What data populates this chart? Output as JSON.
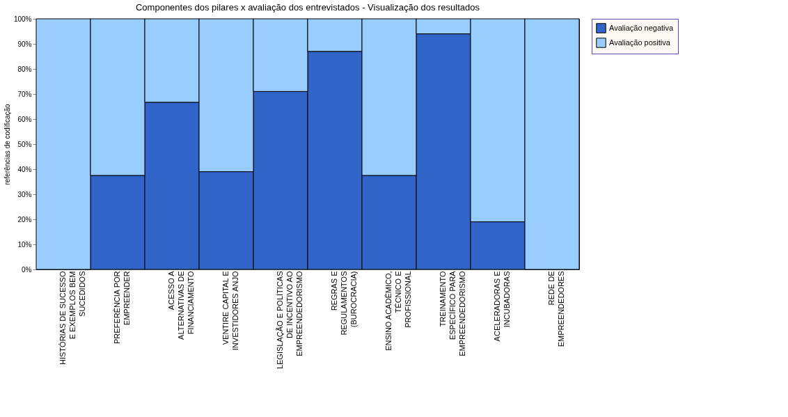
{
  "chart_data": {
    "type": "bar",
    "title": "Componentes dos pilares x avaliação dos entrevistados - Visualização dos resultados",
    "ylabel": "referências de codificação",
    "categories": [
      "HISTÓRIAS DE SUCESSO\nE EXEMPLOS BEM\nSUCEDIDOS",
      "PREFERÊNCIA POR\nEMPREENDER",
      "ACESSO A\nALTERNATIVAS DE\nFINANCIAMENTO",
      "VENTIRE CAPITAL E\nINVESTIDORES ANJO",
      "LEGISLAÇÃO E POLÍTICAS\nDE INCENTIVO AO\nEMPREENDEDORISMO",
      "REGRAS E\nREGULAMENTOS\n(BUROCRACIA)",
      "ENSINO ACADÊMICO,\nTÉCNICO E\nPROFISSIONAL",
      "TREINAMENTO\nESPECÍFICO PARA\nEMPREENDEDORISMO",
      "ACELERADORAS E\nINCUBADORAS",
      "REDE DE\nEMPREENDEDORES"
    ],
    "stacked": true,
    "series": [
      {
        "name": "Avaliação negativa",
        "color": "#3164c8",
        "values": [
          0,
          37.5,
          66.7,
          39,
          71,
          87,
          37.5,
          94,
          19,
          0
        ]
      },
      {
        "name": "Avaliação positiva",
        "color": "#99ccff",
        "values": [
          100,
          62.5,
          33.3,
          61,
          29,
          13,
          62.5,
          6,
          81,
          100
        ]
      }
    ],
    "ylim": [
      0,
      100
    ],
    "yticks": [
      {
        "value": 0,
        "label": "0%"
      },
      {
        "value": 10,
        "label": "10%"
      },
      {
        "value": 20,
        "label": "20%"
      },
      {
        "value": 30,
        "label": "30%"
      },
      {
        "value": 40,
        "label": "40%"
      },
      {
        "value": 50,
        "label": "50%"
      },
      {
        "value": 60,
        "label": "60%"
      },
      {
        "value": 70,
        "label": "70%"
      },
      {
        "value": 80,
        "label": "80%"
      },
      {
        "value": 90,
        "label": "90%"
      },
      {
        "value": 100,
        "label": "100%"
      }
    ],
    "grid": false,
    "legend": "top right"
  }
}
